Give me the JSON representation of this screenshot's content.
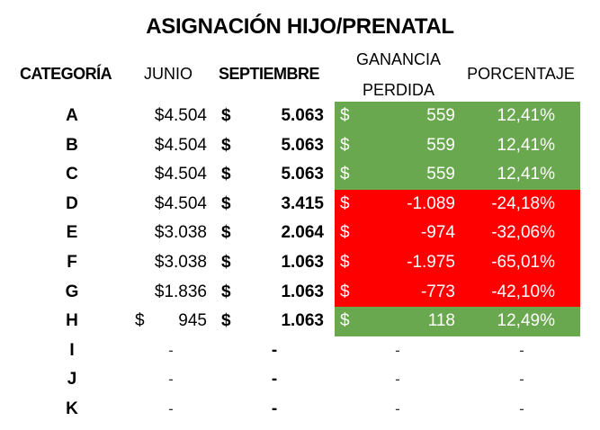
{
  "title": "ASIGNACIÓN HIJO/PRENATAL",
  "headers": {
    "categoria": "CATEGORÍA",
    "junio": "JUNIO",
    "septiembre": "SEPTIEMBRE",
    "ganancia_line1": "GANANCIA",
    "ganancia_line2": "PERDIDA",
    "porcentaje": "PORCENTAJE"
  },
  "colors": {
    "gain": "#6aa84f",
    "loss": "#ff0000"
  },
  "rows": [
    {
      "cat": "A",
      "junio_sym": "",
      "junio": "$4.504",
      "sep_sym": "$",
      "sep": "5.063",
      "gan_sym": "$",
      "gan": "559",
      "pct": "12,41%",
      "status": "gain"
    },
    {
      "cat": "B",
      "junio_sym": "",
      "junio": "$4.504",
      "sep_sym": "$",
      "sep": "5.063",
      "gan_sym": "$",
      "gan": "559",
      "pct": "12,41%",
      "status": "gain"
    },
    {
      "cat": "C",
      "junio_sym": "",
      "junio": "$4.504",
      "sep_sym": "$",
      "sep": "5.063",
      "gan_sym": "$",
      "gan": "559",
      "pct": "12,41%",
      "status": "gain"
    },
    {
      "cat": "D",
      "junio_sym": "",
      "junio": "$4.504",
      "sep_sym": "$",
      "sep": "3.415",
      "gan_sym": "$",
      "gan": "-1.089",
      "pct": "-24,18%",
      "status": "loss"
    },
    {
      "cat": "E",
      "junio_sym": "",
      "junio": "$3.038",
      "sep_sym": "$",
      "sep": "2.064",
      "gan_sym": "$",
      "gan": "-974",
      "pct": "-32,06%",
      "status": "loss"
    },
    {
      "cat": "F",
      "junio_sym": "",
      "junio": "$3.038",
      "sep_sym": "$",
      "sep": "1.063",
      "gan_sym": "$",
      "gan": "-1.975",
      "pct": "-65,01%",
      "status": "loss"
    },
    {
      "cat": "G",
      "junio_sym": "",
      "junio": "$1.836",
      "sep_sym": "$",
      "sep": "1.063",
      "gan_sym": "$",
      "gan": "-773",
      "pct": "-42,10%",
      "status": "loss"
    },
    {
      "cat": "H",
      "junio_sym": "$",
      "junio": "945",
      "sep_sym": "$",
      "sep": "1.063",
      "gan_sym": "$",
      "gan": "118",
      "pct": "12,49%",
      "status": "gain"
    },
    {
      "cat": "I",
      "junio_sym": "",
      "junio": "-",
      "sep_sym": "",
      "sep": "-",
      "gan_sym": "",
      "gan": "-",
      "pct": "-",
      "status": "none"
    },
    {
      "cat": "J",
      "junio_sym": "",
      "junio": "-",
      "sep_sym": "",
      "sep": "-",
      "gan_sym": "",
      "gan": "-",
      "pct": "-",
      "status": "none"
    },
    {
      "cat": "K",
      "junio_sym": "",
      "junio": "-",
      "sep_sym": "",
      "sep": "-",
      "gan_sym": "",
      "gan": "-",
      "pct": "-",
      "status": "none"
    }
  ]
}
